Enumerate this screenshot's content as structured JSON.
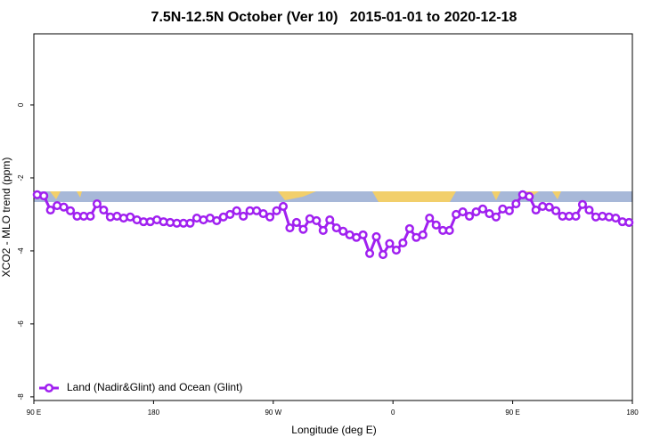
{
  "chart_data": {
    "type": "line",
    "title": "7.5N-12.5N October (Ver 10)   2015-01-01 to 2020-12-18",
    "x_label": "Longitude (deg E)",
    "y_label": "XCO2 - MLO trend (ppm)",
    "xlim": [
      90,
      540
    ],
    "ylim": [
      -8.1,
      1.95
    ],
    "xticks": [
      {
        "value": 90,
        "label": "90 E"
      },
      180,
      {
        "value": 270,
        "label": "90 W"
      },
      {
        "value": 360,
        "label": "0"
      },
      {
        "value": 450,
        "label": "90 E"
      },
      {
        "value": 540,
        "label": "180"
      }
    ],
    "yticks": [
      0,
      -2,
      -4,
      -6,
      -8
    ],
    "legend": "bottom-left",
    "x": [
      92.5,
      97.5,
      102.5,
      107.5,
      112.5,
      117.5,
      122.5,
      127.5,
      132.5,
      137.5,
      142.5,
      147.5,
      152.5,
      157.5,
      162.5,
      167.5,
      172.5,
      177.5,
      182.5,
      187.5,
      192.5,
      197.5,
      202.5,
      207.5,
      212.5,
      217.5,
      222.5,
      227.5,
      232.5,
      237.5,
      242.5,
      247.5,
      252.5,
      257.5,
      262.5,
      267.5,
      272.5,
      277.5,
      282.5,
      287.5,
      292.5,
      297.5,
      302.5,
      307.5,
      312.5,
      317.5,
      322.5,
      327.5,
      332.5,
      337.5,
      342.5,
      347.5,
      352.5,
      357.5,
      362.5,
      367.5,
      372.5,
      377.5,
      382.5,
      387.5,
      392.5,
      397.5,
      402.5,
      407.5,
      412.5,
      417.5,
      422.5,
      427.5,
      432.5,
      437.5,
      442.5,
      447.5,
      452.5,
      457.5,
      462.5,
      467.5,
      472.5,
      477.5,
      482.5,
      487.5,
      492.5,
      497.5,
      502.5,
      507.5,
      512.5,
      517.5,
      522.5,
      527.5,
      532.5,
      537.5
    ],
    "series": [
      {
        "name": "Land (Nadir&Glint) and Ocean (Glint)",
        "color": "#a020f0",
        "values": [
          -2.46,
          -2.49,
          -2.88,
          -2.76,
          -2.8,
          -2.9,
          -3.05,
          -3.05,
          -3.05,
          -2.71,
          -2.88,
          -3.07,
          -3.05,
          -3.1,
          -3.07,
          -3.15,
          -3.2,
          -3.2,
          -3.15,
          -3.2,
          -3.22,
          -3.24,
          -3.24,
          -3.24,
          -3.1,
          -3.15,
          -3.1,
          -3.17,
          -3.07,
          -3.0,
          -2.9,
          -3.05,
          -2.9,
          -2.9,
          -2.98,
          -3.07,
          -2.9,
          -2.78,
          -3.37,
          -3.22,
          -3.41,
          -3.12,
          -3.17,
          -3.44,
          -3.15,
          -3.37,
          -3.46,
          -3.56,
          -3.63,
          -3.56,
          -4.07,
          -3.61,
          -4.1,
          -3.8,
          -3.98,
          -3.78,
          -3.39,
          -3.63,
          -3.56,
          -3.1,
          -3.29,
          -3.44,
          -3.44,
          -3.0,
          -2.93,
          -3.05,
          -2.93,
          -2.85,
          -2.98,
          -3.07,
          -2.85,
          -2.9,
          -2.71,
          -2.46,
          -2.51,
          -2.88,
          -2.78,
          -2.8,
          -2.9,
          -3.05,
          -3.05,
          -3.05,
          -2.73,
          -2.88,
          -3.07,
          -3.05,
          -3.07,
          -3.1,
          -3.2,
          -3.22
        ]
      }
    ]
  }
}
